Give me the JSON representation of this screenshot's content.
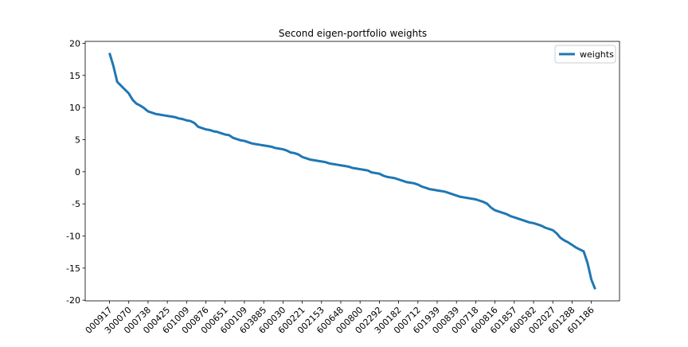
{
  "chart_data": {
    "type": "line",
    "title": "Second eigen-portfolio weights",
    "categories": [
      "000917",
      null,
      null,
      null,
      null,
      "300070",
      null,
      null,
      null,
      null,
      "000738",
      null,
      null,
      null,
      null,
      "000425",
      null,
      null,
      null,
      null,
      "601009",
      null,
      null,
      null,
      null,
      "000876",
      null,
      null,
      null,
      null,
      "000651",
      null,
      null,
      null,
      null,
      "600109",
      null,
      null,
      null,
      null,
      "603885",
      null,
      null,
      null,
      null,
      "600030",
      null,
      null,
      null,
      null,
      "600221",
      null,
      null,
      null,
      null,
      "002153",
      null,
      null,
      null,
      null,
      "600648",
      null,
      null,
      null,
      null,
      "000800",
      null,
      null,
      null,
      null,
      "002292",
      null,
      null,
      null,
      null,
      "300182",
      null,
      null,
      null,
      null,
      "000712",
      null,
      null,
      null,
      null,
      "601939",
      null,
      null,
      null,
      null,
      "000839",
      null,
      null,
      null,
      null,
      "000718",
      null,
      null,
      null,
      null,
      "600816",
      null,
      null,
      null,
      null,
      "601857",
      null,
      null,
      null,
      null,
      "600582",
      null,
      null,
      null,
      null,
      "002027",
      null,
      null,
      null,
      null,
      "601288",
      null,
      null,
      null,
      null,
      "601186",
      null
    ],
    "series": [
      {
        "name": "weights",
        "color": "#1f77b4",
        "values": [
          18.5,
          16.5,
          14.0,
          13.4,
          12.8,
          12.2,
          11.2,
          10.6,
          10.3,
          9.9,
          9.4,
          9.2,
          9.0,
          8.9,
          8.8,
          8.7,
          8.6,
          8.5,
          8.3,
          8.2,
          8.0,
          7.9,
          7.6,
          7.0,
          6.8,
          6.6,
          6.5,
          6.3,
          6.2,
          6.0,
          5.8,
          5.7,
          5.3,
          5.1,
          4.9,
          4.8,
          4.6,
          4.4,
          4.3,
          4.2,
          4.1,
          4.0,
          3.9,
          3.7,
          3.6,
          3.5,
          3.3,
          3.0,
          2.9,
          2.7,
          2.3,
          2.1,
          1.9,
          1.8,
          1.7,
          1.6,
          1.5,
          1.3,
          1.2,
          1.1,
          1.0,
          0.9,
          0.8,
          0.6,
          0.5,
          0.4,
          0.3,
          0.2,
          -0.1,
          -0.2,
          -0.3,
          -0.6,
          -0.8,
          -0.9,
          -1.0,
          -1.2,
          -1.4,
          -1.6,
          -1.7,
          -1.8,
          -2.0,
          -2.3,
          -2.5,
          -2.7,
          -2.8,
          -2.9,
          -3.0,
          -3.1,
          -3.3,
          -3.5,
          -3.7,
          -3.9,
          -4.0,
          -4.1,
          -4.2,
          -4.3,
          -4.5,
          -4.7,
          -5.0,
          -5.6,
          -6.0,
          -6.2,
          -6.4,
          -6.6,
          -6.9,
          -7.1,
          -7.3,
          -7.5,
          -7.7,
          -7.9,
          -8.0,
          -8.2,
          -8.4,
          -8.7,
          -8.9,
          -9.1,
          -9.6,
          -10.3,
          -10.7,
          -11.0,
          -11.4,
          -11.8,
          -12.1,
          -12.4,
          -14.2,
          -16.8,
          -18.3
        ]
      }
    ],
    "xlim": [
      -6.3,
      132.3
    ],
    "ylim": [
      -20.1,
      20.3
    ],
    "yticks": [
      -20,
      -15,
      -10,
      -5,
      0,
      5,
      10,
      15,
      20
    ],
    "legend": "upper right"
  }
}
